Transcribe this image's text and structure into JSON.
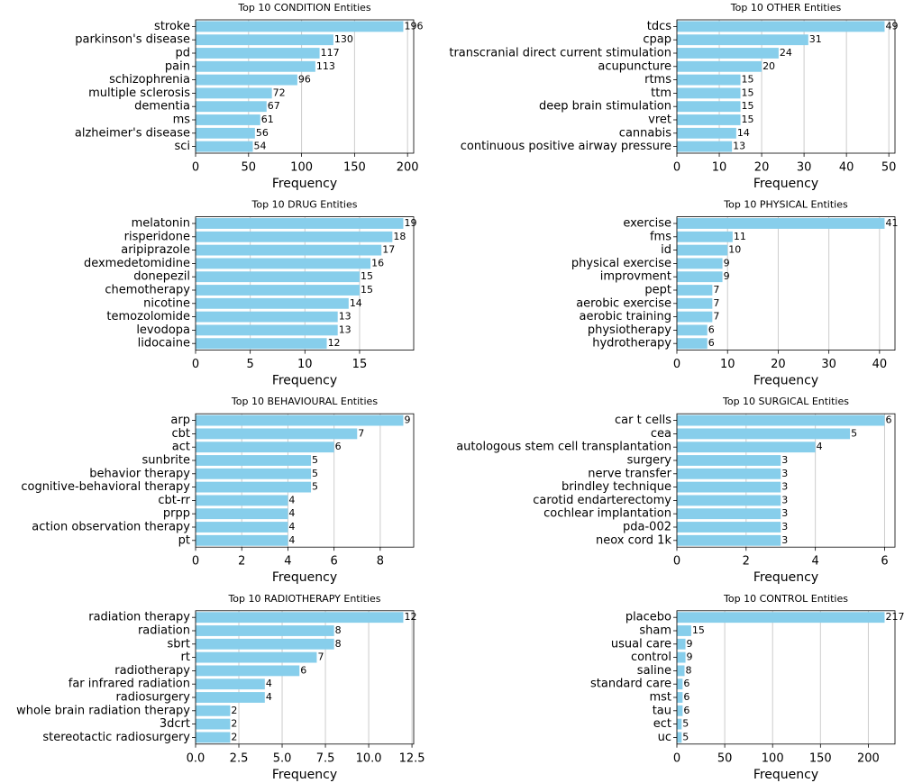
{
  "chart_data": [
    {
      "type": "bar",
      "orientation": "horizontal",
      "title": "Top 10 CONDITION Entities",
      "xlabel": "Frequency",
      "color": "#87ceeb",
      "grid": true,
      "categories": [
        "stroke",
        "parkinson's disease",
        "pd",
        "pain",
        "schizophrenia",
        "multiple sclerosis",
        "dementia",
        "ms",
        "alzheimer's disease",
        "sci"
      ],
      "values": [
        196,
        130,
        117,
        113,
        96,
        72,
        67,
        61,
        56,
        54
      ],
      "xlim": [
        0,
        205.8
      ],
      "xticks": [
        0,
        50,
        100,
        150,
        200
      ]
    },
    {
      "type": "bar",
      "orientation": "horizontal",
      "title": "Top 10 OTHER Entities",
      "xlabel": "Frequency",
      "color": "#87ceeb",
      "grid": true,
      "categories": [
        "tdcs",
        "cpap",
        "transcranial direct current stimulation",
        "acupuncture",
        "rtms",
        "ttm",
        "deep brain stimulation",
        "vret",
        "cannabis",
        "continuous positive airway pressure"
      ],
      "values": [
        49,
        31,
        24,
        20,
        15,
        15,
        15,
        15,
        14,
        13
      ],
      "xlim": [
        0,
        51.45
      ],
      "xticks": [
        0,
        10,
        20,
        30,
        40,
        50
      ]
    },
    {
      "type": "bar",
      "orientation": "horizontal",
      "title": "Top 10 DRUG Entities",
      "xlabel": "Frequency",
      "color": "#87ceeb",
      "grid": true,
      "categories": [
        "melatonin",
        "risperidone",
        "aripiprazole",
        "dexmedetomidine",
        "donepezil",
        "chemotherapy",
        "nicotine",
        "temozolomide",
        "levodopa",
        "lidocaine"
      ],
      "values": [
        19,
        18,
        17,
        16,
        15,
        15,
        14,
        13,
        13,
        12
      ],
      "xlim": [
        0,
        19.95
      ],
      "xticks": [
        0,
        5,
        10,
        15
      ]
    },
    {
      "type": "bar",
      "orientation": "horizontal",
      "title": "Top 10 PHYSICAL Entities",
      "xlabel": "Frequency",
      "color": "#87ceeb",
      "grid": true,
      "categories": [
        "exercise",
        "fms",
        "id",
        "physical exercise",
        "improvment",
        "pept",
        "aerobic exercise",
        "aerobic training",
        "physiotherapy",
        "hydrotherapy"
      ],
      "values": [
        41,
        11,
        10,
        9,
        9,
        7,
        7,
        7,
        6,
        6
      ],
      "xlim": [
        0,
        43.05
      ],
      "xticks": [
        0,
        10,
        20,
        30,
        40
      ]
    },
    {
      "type": "bar",
      "orientation": "horizontal",
      "title": "Top 10 BEHAVIOURAL Entities",
      "xlabel": "Frequency",
      "color": "#87ceeb",
      "grid": true,
      "categories": [
        "arp",
        "cbt",
        "act",
        "sunbrite",
        "behavior therapy",
        "cognitive-behavioral therapy",
        "cbt-rr",
        "prpp",
        "action observation therapy",
        "pt"
      ],
      "values": [
        9,
        7,
        6,
        5,
        5,
        5,
        4,
        4,
        4,
        4
      ],
      "xlim": [
        0,
        9.45
      ],
      "xticks": [
        0,
        2,
        4,
        6,
        8
      ]
    },
    {
      "type": "bar",
      "orientation": "horizontal",
      "title": "Top 10 SURGICAL Entities",
      "xlabel": "Frequency",
      "color": "#87ceeb",
      "grid": true,
      "categories": [
        "car t cells",
        "cea",
        "autologous stem cell transplantation",
        "surgery",
        "nerve transfer",
        "brindley technique",
        "carotid endarterectomy",
        "cochlear implantation",
        "pda-002",
        "neox cord 1k"
      ],
      "values": [
        6,
        5,
        4,
        3,
        3,
        3,
        3,
        3,
        3,
        3
      ],
      "xlim": [
        0,
        6.3
      ],
      "xticks": [
        0,
        2,
        4,
        6
      ]
    },
    {
      "type": "bar",
      "orientation": "horizontal",
      "title": "Top 10 RADIOTHERAPY Entities",
      "xlabel": "Frequency",
      "color": "#87ceeb",
      "grid": true,
      "categories": [
        "radiation therapy",
        "radiation",
        "sbrt",
        "rt",
        "radiotherapy",
        "far infrared radiation",
        "radiosurgery",
        "whole brain radiation therapy",
        "3dcrt",
        "stereotactic radiosurgery"
      ],
      "values": [
        12,
        8,
        8,
        7,
        6,
        4,
        4,
        2,
        2,
        2
      ],
      "xlim": [
        0,
        12.6
      ],
      "xticks": [
        {
          "value": 0,
          "label": "0.0"
        },
        2.5,
        {
          "value": 5,
          "label": "5.0"
        },
        7.5,
        {
          "value": 10,
          "label": "10.0"
        },
        12.5
      ]
    },
    {
      "type": "bar",
      "orientation": "horizontal",
      "title": "Top 10 CONTROL Entities",
      "xlabel": "Frequency",
      "color": "#87ceeb",
      "grid": true,
      "categories": [
        "placebo",
        "sham",
        "usual care",
        "control",
        "saline",
        "standard care",
        "mst",
        "tau",
        "ect",
        "uc"
      ],
      "values": [
        217,
        15,
        9,
        9,
        8,
        6,
        6,
        6,
        5,
        5
      ],
      "xlim": [
        0,
        227.85
      ],
      "xticks": [
        0,
        50,
        100,
        150,
        200
      ]
    }
  ]
}
